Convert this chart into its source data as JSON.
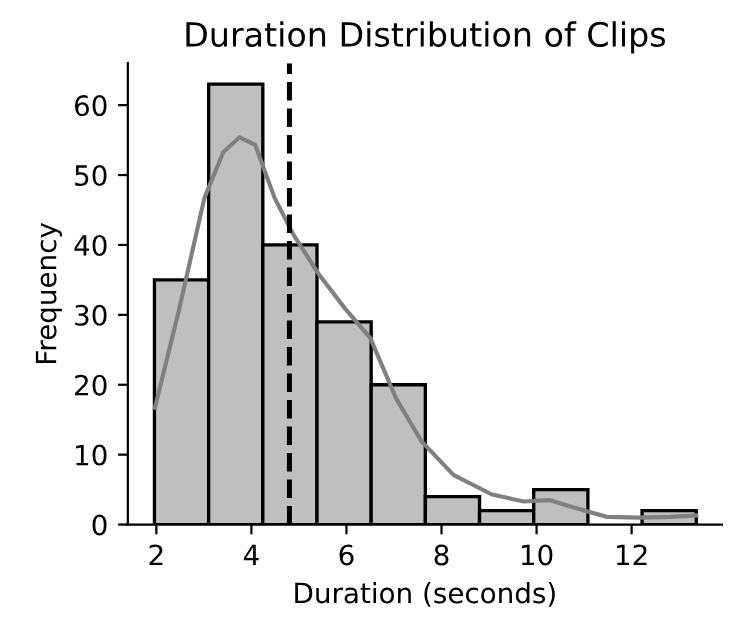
{
  "chart_data": {
    "type": "histogram",
    "title": "Duration Distribution of Clips",
    "xlabel": "Duration (seconds)",
    "ylabel": "Frequency",
    "bins": [
      1.96,
      3.1,
      4.24,
      5.38,
      6.52,
      7.66,
      8.8,
      9.94,
      11.08,
      12.22,
      13.36
    ],
    "values": [
      35,
      63,
      40,
      29,
      20,
      4,
      2,
      5,
      0,
      2
    ],
    "color": "#bfbfbf",
    "series": [
      {
        "type": "line",
        "color": "#808080",
        "x": [
          1.97,
          2.47,
          3.01,
          3.41,
          3.75,
          4.08,
          4.49,
          4.89,
          5.43,
          5.96,
          6.5,
          7.04,
          7.58,
          8.25,
          9.06,
          9.73,
          10.27,
          10.8,
          11.48,
          12.15,
          12.82,
          13.36
        ],
        "values": [
          16.7,
          30.5,
          46.7,
          53.3,
          55.4,
          54.3,
          46.7,
          41.4,
          35.7,
          31,
          26.7,
          18.1,
          11.9,
          7.1,
          4.3,
          3.3,
          3.5,
          2.4,
          1.1,
          1,
          1.1,
          1.3
        ]
      }
    ],
    "ref_lines": [
      {
        "axis": "x",
        "value": 4.8,
        "color": "#000000",
        "line_style": "dashed"
      }
    ],
    "xlim": [
      1.4,
      13.9
    ],
    "ylim": [
      0,
      66
    ],
    "xticks": [
      2,
      4,
      6,
      8,
      10,
      12
    ],
    "yticks": [
      0,
      10,
      20,
      30,
      40,
      50,
      60
    ],
    "grid": false
  }
}
